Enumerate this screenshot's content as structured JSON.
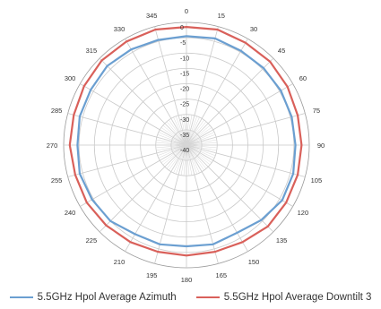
{
  "chart_data": {
    "type": "line",
    "projection": "polar",
    "title": "",
    "angle_ticks": [
      "0",
      "15",
      "30",
      "45",
      "60",
      "75",
      "90",
      "105",
      "120",
      "135",
      "150",
      "165",
      "180",
      "195",
      "210",
      "225",
      "240",
      "255",
      "270",
      "285",
      "300",
      "315",
      "330",
      "345"
    ],
    "radial_ticks": [
      "0",
      "-5",
      "-10",
      "-15",
      "-20",
      "-25",
      "-30",
      "-35",
      "-40"
    ],
    "rlim": [
      -40,
      0
    ],
    "grid": true,
    "legend_position": "bottom",
    "series": [
      {
        "name": "5.5GHz Hpol Average Azimuth",
        "color": "#6b9fd1",
        "angles": [
          0,
          15,
          30,
          45,
          60,
          75,
          90,
          105,
          120,
          135,
          150,
          165,
          180,
          195,
          210,
          225,
          240,
          255,
          270,
          285,
          300,
          315,
          330,
          345
        ],
        "values": [
          -4.5,
          -4,
          -4.5,
          -4.5,
          -4.5,
          -4.5,
          -4.5,
          -4,
          -4,
          -5.5,
          -7,
          -6.5,
          -7,
          -6.5,
          -6.5,
          -5,
          -4.5,
          -4,
          -4.5,
          -4,
          -4,
          -3.5,
          -4,
          -4.5
        ]
      },
      {
        "name": "5.5GHz Hpol Average Downtilt 3",
        "color": "#d9605a",
        "angles": [
          0,
          15,
          30,
          45,
          60,
          75,
          90,
          105,
          120,
          135,
          150,
          165,
          180,
          195,
          210,
          225,
          240,
          255,
          270,
          285,
          300,
          315,
          330,
          345
        ],
        "values": [
          -1.5,
          -1,
          -1.5,
          -1.5,
          -2,
          -2.5,
          -2.5,
          -2.5,
          -2.5,
          -2.5,
          -3.5,
          -4,
          -4,
          -4,
          -3.5,
          -3,
          -2.5,
          -2.5,
          -2,
          -2,
          -1.5,
          -1,
          -1,
          -1
        ]
      }
    ]
  }
}
